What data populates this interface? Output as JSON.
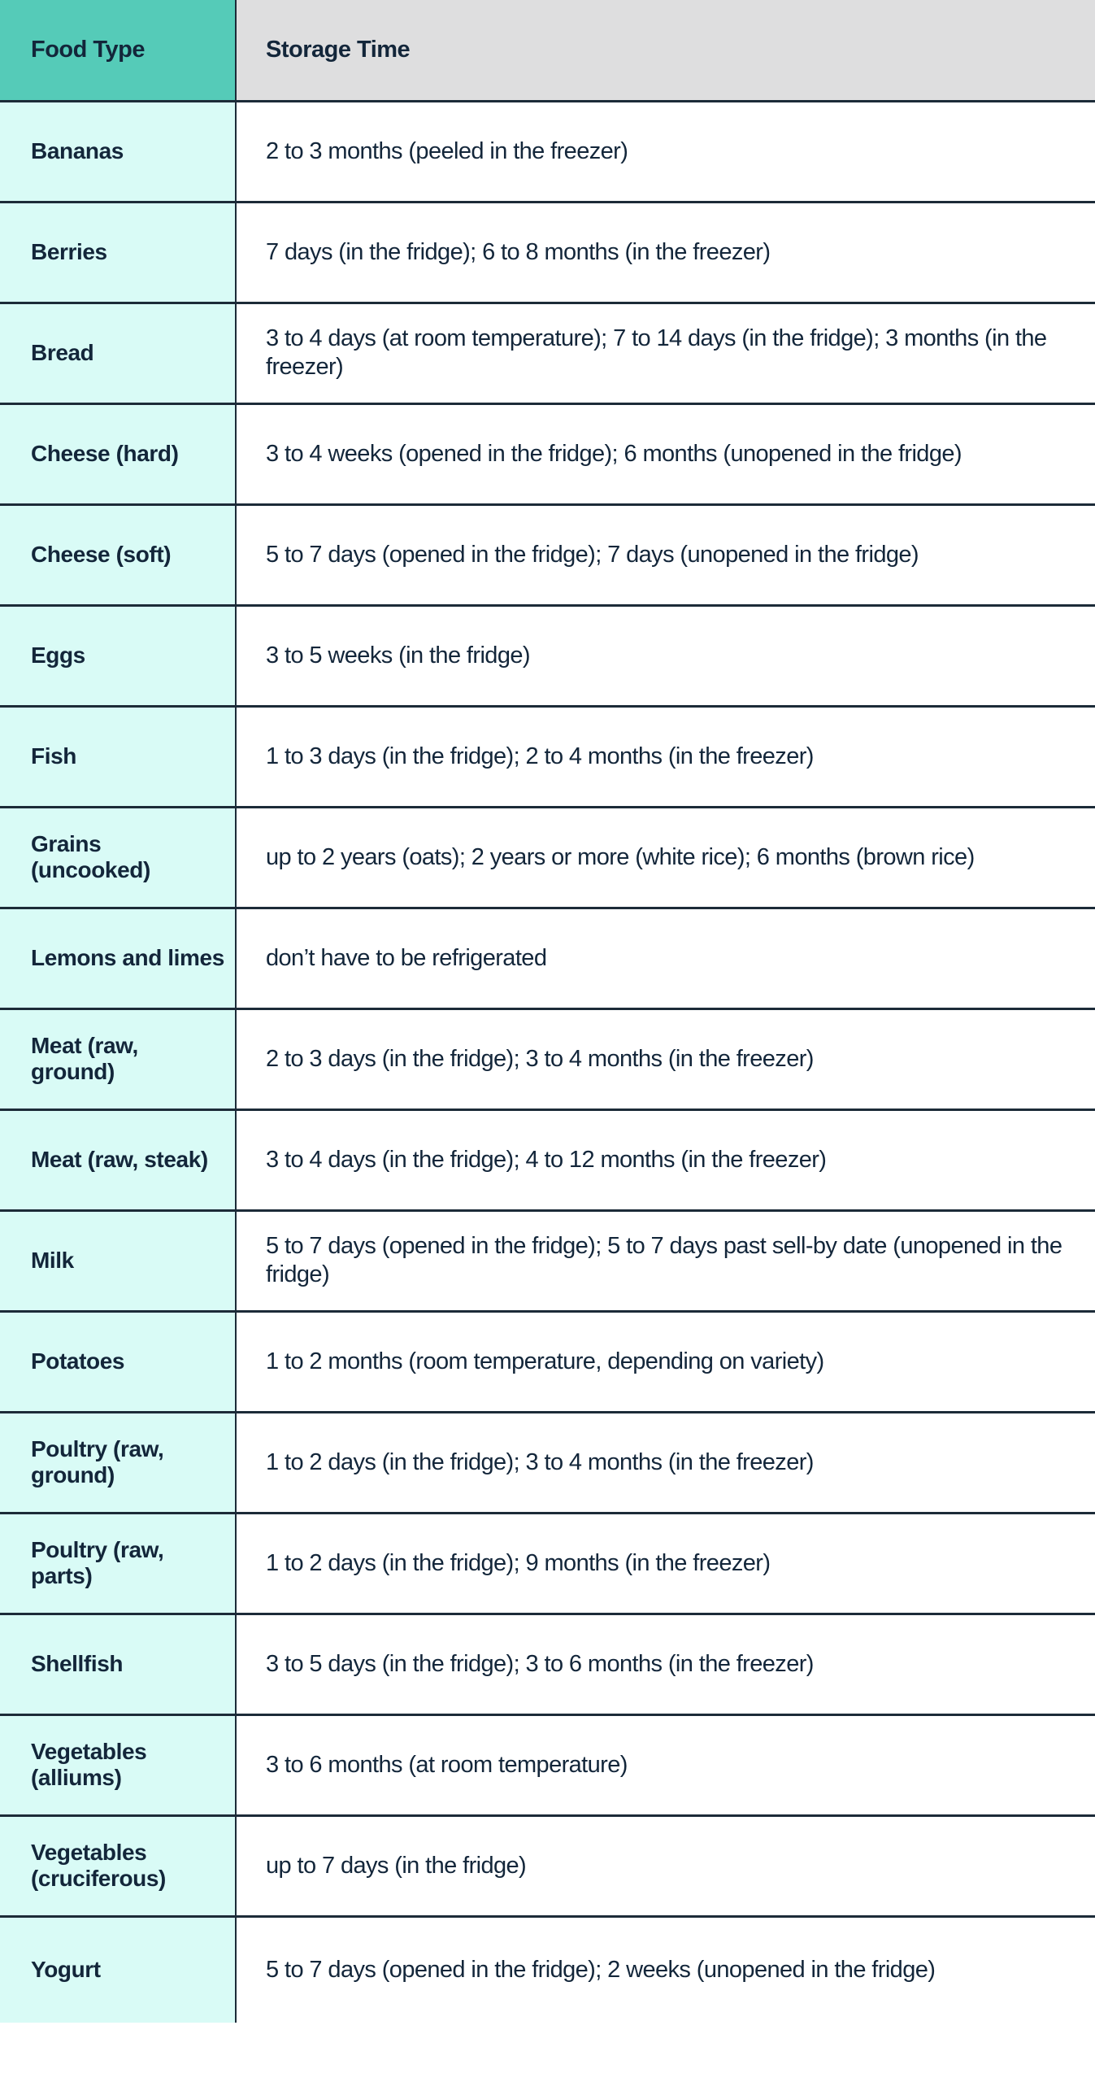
{
  "table": {
    "headers": {
      "food": "Food Type",
      "time": "Storage Time"
    },
    "colors": {
      "header_food_bg": "#55cbb8",
      "header_time_bg": "#dededf",
      "food_col_bg": "#d9fbf6",
      "border": "#1c2b38",
      "text": "#13263a"
    },
    "rows": [
      {
        "food": "Bananas",
        "time": "2 to 3 months (peeled in the freezer)"
      },
      {
        "food": "Berries",
        "time": "7 days (in the fridge); 6 to 8 months (in the freezer)"
      },
      {
        "food": "Bread",
        "time": "3 to 4 days (at room temperature); 7 to 14 days (in the fridge); 3 months (in the freezer)"
      },
      {
        "food": "Cheese (hard)",
        "time": "3 to 4 weeks (opened in the fridge); 6 months (unopened in the fridge)"
      },
      {
        "food": "Cheese (soft)",
        "time": "5 to 7 days (opened in the fridge); 7 days (unopened in the fridge)"
      },
      {
        "food": "Eggs",
        "time": "3 to 5 weeks (in the fridge)"
      },
      {
        "food": "Fish",
        "time": "1 to 3 days (in the fridge); 2 to 4 months (in the freezer)"
      },
      {
        "food": "Grains (uncooked)",
        "time": "up to 2 years (oats); 2 years or more (white rice); 6 months (brown rice)"
      },
      {
        "food": "Lemons and limes",
        "time": "don’t have to be refrigerated"
      },
      {
        "food": "Meat (raw, ground)",
        "time": "2 to 3 days (in the fridge); 3 to 4 months (in the freezer)"
      },
      {
        "food": "Meat (raw, steak)",
        "time": "3 to 4 days (in the fridge); 4 to 12 months (in the freezer)"
      },
      {
        "food": "Milk",
        "time": "5 to 7 days (opened in the fridge); 5 to 7 days past sell-by date (unopened in the fridge)"
      },
      {
        "food": "Potatoes",
        "time": "1 to 2 months (room temperature, depending on variety)"
      },
      {
        "food": "Poultry (raw, ground)",
        "time": "1 to 2 days (in the fridge); 3 to 4 months (in the freezer)"
      },
      {
        "food": "Poultry (raw, parts)",
        "time": "1 to 2 days (in the fridge); 9 months (in the freezer)"
      },
      {
        "food": "Shellfish",
        "time": "3 to 5 days (in the fridge); 3 to 6 months (in the freezer)"
      },
      {
        "food": "Vegetables (alliums)",
        "time": "3 to 6 months (at room temperature)"
      },
      {
        "food": "Vegetables (cruciferous)",
        "time": "up to 7 days (in the fridge)"
      },
      {
        "food": "Yogurt",
        "time": "5 to 7 days (opened in the fridge); 2 weeks (unopened in the fridge)"
      }
    ]
  }
}
